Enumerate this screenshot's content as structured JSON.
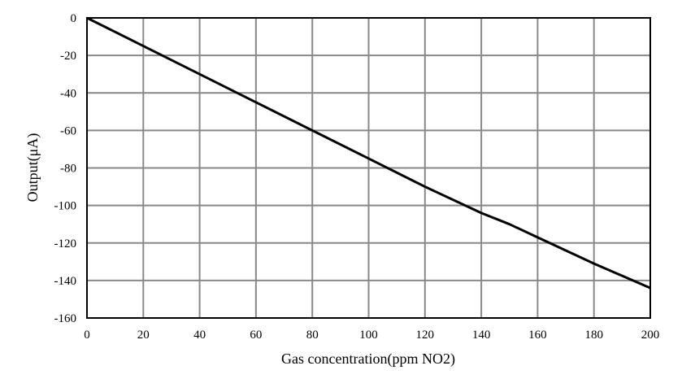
{
  "chart_data": {
    "type": "line",
    "title": "",
    "xlabel": "Gas concentration(ppm  NO2)",
    "ylabel": "Output(μA)",
    "xlim": [
      0,
      200
    ],
    "ylim": [
      -160,
      0
    ],
    "grid": true,
    "x_ticks": [
      "0",
      "20",
      "40",
      "60",
      "80",
      "100",
      "120",
      "140",
      "160",
      "180",
      "200"
    ],
    "y_ticks": [
      "0",
      "-20",
      "-40",
      "-60",
      "-80",
      "-100",
      "-120",
      "-140",
      "-160"
    ],
    "series": [
      {
        "name": "Output",
        "color": "#000000",
        "x": [
          0,
          20,
          40,
          60,
          80,
          100,
          120,
          140,
          150,
          160,
          180,
          200
        ],
        "y": [
          0,
          -15,
          -30,
          -45,
          -60,
          -75,
          -90,
          -104,
          -110,
          -117,
          -131,
          -144
        ]
      }
    ]
  }
}
